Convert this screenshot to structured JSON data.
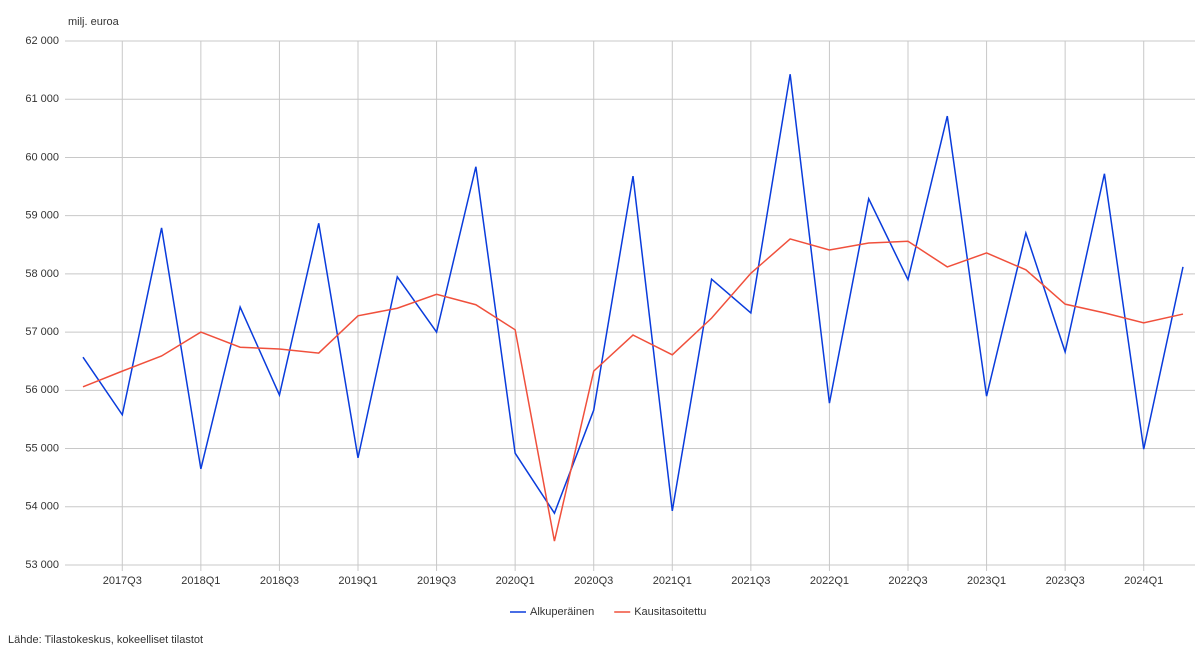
{
  "chart_data": {
    "type": "line",
    "y_axis_label": "milj. euroa",
    "source": "Lähde: Tilastokeskus, kokeelliset tilastot",
    "categories": [
      null,
      "2017Q3",
      null,
      "2018Q1",
      null,
      "2018Q3",
      null,
      "2019Q1",
      null,
      "2019Q3",
      null,
      "2020Q1",
      null,
      "2020Q3",
      null,
      "2021Q1",
      null,
      "2021Q3",
      null,
      "2022Q1",
      null,
      "2022Q3",
      null,
      "2023Q1",
      null,
      "2023Q3",
      null,
      "2024Q1",
      null
    ],
    "series": [
      {
        "name": "Alkuperäinen",
        "color": "#0a3cdc",
        "values": [
          56570,
          55580,
          58790,
          54650,
          57430,
          55920,
          58870,
          54840,
          57950,
          57000,
          59840,
          54920,
          53890,
          55660,
          59680,
          53930,
          57910,
          57330,
          61430,
          55780,
          59290,
          57900,
          60710,
          55900,
          58700,
          56660,
          59720,
          54990,
          58120
        ]
      },
      {
        "name": "Kausitasoitettu",
        "color": "#f0503c",
        "values": [
          56060,
          56330,
          56590,
          57000,
          56740,
          56710,
          56640,
          57280,
          57410,
          57650,
          57470,
          57040,
          53410,
          56330,
          56950,
          56610,
          57240,
          58010,
          58600,
          58410,
          58530,
          58560,
          58120,
          58360,
          58070,
          57480,
          57330,
          57160,
          57310
        ]
      }
    ],
    "ylim": [
      53000,
      62000
    ],
    "yticks": [
      {
        "value": 53000,
        "label": "53 000"
      },
      {
        "value": 54000,
        "label": "54 000"
      },
      {
        "value": 55000,
        "label": "55 000"
      },
      {
        "value": 56000,
        "label": "56 000"
      },
      {
        "value": 57000,
        "label": "57 000"
      },
      {
        "value": 58000,
        "label": "58 000"
      },
      {
        "value": 59000,
        "label": "59 000"
      },
      {
        "value": 60000,
        "label": "60 000"
      },
      {
        "value": 61000,
        "label": "61 000"
      },
      {
        "value": 62000,
        "label": "62 000"
      }
    ],
    "grid": true,
    "legend": "bottom"
  }
}
